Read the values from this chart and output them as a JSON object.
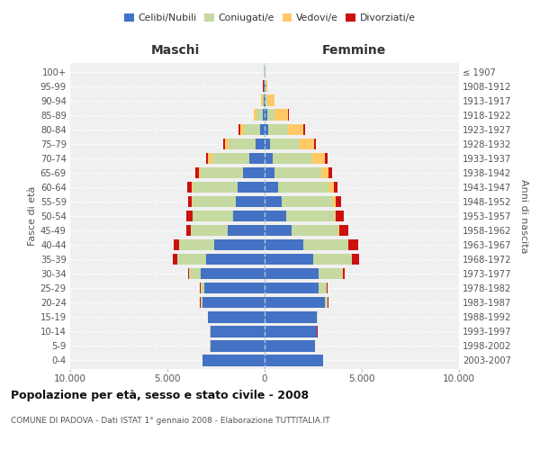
{
  "age_groups": [
    "0-4",
    "5-9",
    "10-14",
    "15-19",
    "20-24",
    "25-29",
    "30-34",
    "35-39",
    "40-44",
    "45-49",
    "50-54",
    "55-59",
    "60-64",
    "65-69",
    "70-74",
    "75-79",
    "80-84",
    "85-89",
    "90-94",
    "95-99",
    "100+"
  ],
  "birth_years": [
    "2003-2007",
    "1998-2002",
    "1993-1997",
    "1988-1992",
    "1983-1987",
    "1978-1982",
    "1973-1977",
    "1968-1972",
    "1963-1967",
    "1958-1962",
    "1953-1957",
    "1948-1952",
    "1943-1947",
    "1938-1942",
    "1933-1937",
    "1928-1932",
    "1923-1927",
    "1918-1922",
    "1913-1917",
    "1908-1912",
    "≤ 1907"
  ],
  "colors": {
    "celibi": "#4472C4",
    "coniugati": "#c5d9a0",
    "vedovi": "#ffc966",
    "divorziati": "#cc1111"
  },
  "maschi": {
    "celibi": [
      3200,
      2800,
      2800,
      2900,
      3200,
      3100,
      3300,
      3000,
      2600,
      1900,
      1600,
      1500,
      1400,
      1100,
      800,
      450,
      250,
      100,
      50,
      30,
      20
    ],
    "coniugati": [
      2,
      2,
      5,
      10,
      100,
      200,
      600,
      1500,
      1800,
      1900,
      2100,
      2200,
      2300,
      2200,
      1900,
      1400,
      800,
      300,
      60,
      15,
      5
    ],
    "vedovi": [
      2,
      2,
      2,
      2,
      5,
      5,
      5,
      5,
      5,
      8,
      15,
      30,
      60,
      100,
      200,
      180,
      200,
      150,
      80,
      20,
      5
    ],
    "divorziati": [
      2,
      2,
      2,
      5,
      10,
      20,
      50,
      200,
      250,
      200,
      300,
      200,
      200,
      150,
      100,
      100,
      80,
      5,
      5,
      5,
      2
    ]
  },
  "femmine": {
    "celibi": [
      3000,
      2600,
      2700,
      2700,
      3100,
      2800,
      2800,
      2500,
      2000,
      1400,
      1100,
      900,
      700,
      500,
      400,
      300,
      200,
      120,
      60,
      30,
      20
    ],
    "coniugati": [
      2,
      2,
      5,
      20,
      150,
      400,
      1200,
      2000,
      2300,
      2400,
      2500,
      2600,
      2600,
      2400,
      2000,
      1500,
      1000,
      400,
      80,
      10,
      5
    ],
    "vedovi": [
      2,
      2,
      2,
      2,
      5,
      5,
      5,
      10,
      20,
      40,
      80,
      150,
      250,
      400,
      700,
      750,
      800,
      700,
      350,
      80,
      10
    ],
    "divorziati": [
      2,
      2,
      2,
      5,
      10,
      30,
      100,
      350,
      500,
      450,
      400,
      300,
      200,
      150,
      150,
      100,
      80,
      30,
      5,
      5,
      2
    ]
  },
  "title": "Popolazione per età, sesso e stato civile - 2008",
  "subtitle": "COMUNE DI PADOVA - Dati ISTAT 1° gennaio 2008 - Elaborazione TUTTITALIA.IT",
  "xlabel_left": "Maschi",
  "xlabel_right": "Femmine",
  "ylabel_left": "Fasce di età",
  "ylabel_right": "Anni di nascita",
  "xlim": 10000,
  "background_color": "#f0f0f0",
  "legend_labels": [
    "Celibi/Nubili",
    "Coniugati/e",
    "Vedovi/e",
    "Divorziati/e"
  ]
}
